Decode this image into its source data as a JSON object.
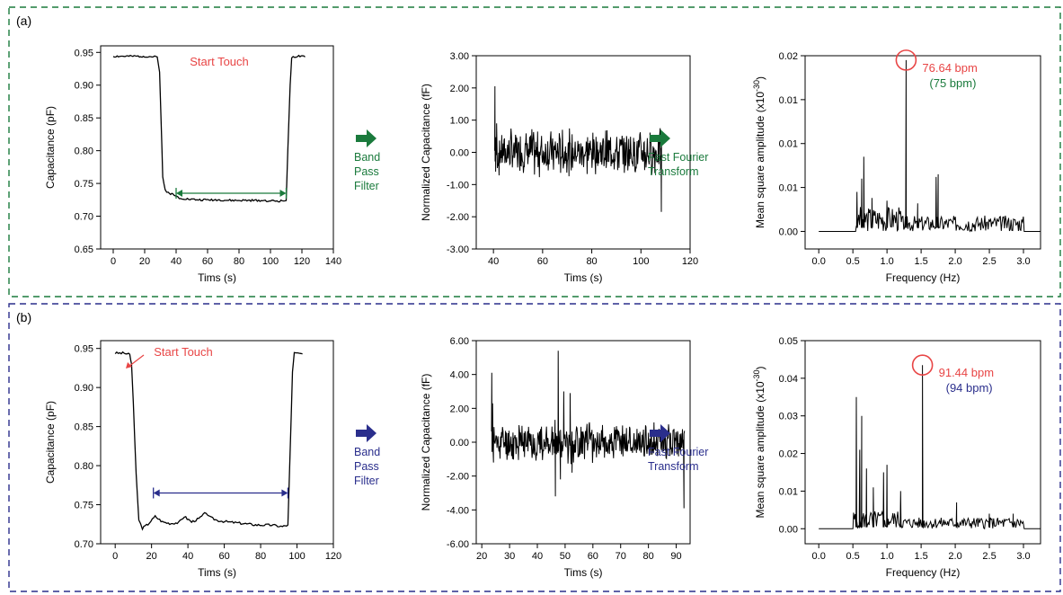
{
  "panels": [
    {
      "label": "(a)",
      "color": "#1a7a3c",
      "arrow_label_1": [
        "Band",
        "Pass",
        "Filter"
      ],
      "arrow_label_2": [
        "Fast Fourier",
        "Transform"
      ],
      "chart_data": [
        {
          "type": "line",
          "xlabel": "Tims (s)",
          "ylabel": "Capacitance (pF)",
          "xlim": [
            -8,
            140
          ],
          "ylim": [
            0.65,
            0.96
          ],
          "xticks": [
            0,
            20,
            40,
            60,
            80,
            100,
            120,
            140
          ],
          "yticks": [
            0.65,
            0.7,
            0.75,
            0.8,
            0.85,
            0.9,
            0.95
          ],
          "ytick_labels": [
            "0.65",
            "0.70",
            "0.75",
            "0.80",
            "0.85",
            "0.90",
            "0.95"
          ],
          "annotation": "Start Touch",
          "bracket": [
            40,
            110,
            0.735
          ],
          "series": [
            {
              "x": [
                0,
                10,
                20,
                28,
                29.5,
                30.5,
                31.5,
                33,
                35,
                38,
                42,
                48,
                55,
                65,
                75,
                85,
                95,
                105,
                110,
                111,
                112.5,
                113.5,
                118,
                122
              ],
              "y": [
                0.944,
                0.944,
                0.944,
                0.943,
                0.92,
                0.84,
                0.76,
                0.74,
                0.736,
                0.733,
                0.728,
                0.726,
                0.725,
                0.725,
                0.724,
                0.724,
                0.724,
                0.723,
                0.724,
                0.8,
                0.9,
                0.943,
                0.944,
                0.943
              ]
            }
          ]
        },
        {
          "type": "line",
          "xlabel": "Tims (s)",
          "ylabel": "Normalized Capacitance (fF)",
          "xlim": [
            33,
            120
          ],
          "ylim": [
            -3.0,
            3.0
          ],
          "xticks": [
            40,
            60,
            80,
            100,
            120
          ],
          "yticks": [
            -3,
            -2,
            -1,
            0,
            1,
            2,
            3
          ],
          "ytick_labels": [
            "-3.00",
            "-2.00",
            "-1.00",
            "0.00",
            "1.00",
            "2.00",
            "3.00"
          ],
          "noise": {
            "x0": 40.5,
            "x1": 108.5,
            "amp": 0.55,
            "seed": 7,
            "spikes": [
              [
                40.6,
                2.05
              ],
              [
                40.9,
                -0.6
              ],
              [
                41.3,
                0.9
              ],
              [
                108.3,
                -1.85
              ]
            ]
          }
        },
        {
          "type": "line",
          "xlabel": "Frequency (Hz)",
          "ylabel": "Mean square amplitude (x10-30)",
          "xlim": [
            -0.2,
            3.25
          ],
          "ylim": [
            -0.002,
            0.02
          ],
          "xticks": [
            0.0,
            0.5,
            1.0,
            1.5,
            2.0,
            2.5,
            3.0
          ],
          "xtick_labels": [
            "0.0",
            "0.5",
            "1.0",
            "1.5",
            "2.0",
            "2.5",
            "3.0"
          ],
          "yticks": [
            0.0,
            0.005,
            0.01,
            0.015,
            0.02
          ],
          "ytick_labels": [
            "0.00",
            "0.01",
            "0.01",
            "0.01",
            "0.02"
          ],
          "peak_label": "76.64 bpm",
          "reference_label": "(75 bpm)",
          "peak": [
            1.28,
            0.0195
          ],
          "spectrum": {
            "baseline_until": 0.54,
            "end": 3.0,
            "tail": 3.25,
            "floor_amp": 0.0018,
            "seed": 3,
            "peaks": [
              [
                0.56,
                0.0045
              ],
              [
                0.63,
                0.006
              ],
              [
                0.66,
                0.0085
              ],
              [
                0.78,
                0.0038
              ],
              [
                1.0,
                0.0035
              ],
              [
                1.28,
                0.0195
              ],
              [
                1.45,
                0.0032
              ],
              [
                1.72,
                0.0062
              ],
              [
                1.75,
                0.0065
              ]
            ]
          }
        }
      ]
    },
    {
      "label": "(b)",
      "color": "#2a2e8c",
      "arrow_label_1": [
        "Band",
        "Pass",
        "Filter"
      ],
      "arrow_label_2": [
        "Fast Fourier",
        "Transform"
      ],
      "chart_data": [
        {
          "type": "line",
          "xlabel": "Tims (s)",
          "ylabel": "Capacitance (pF)",
          "xlim": [
            -8,
            120
          ],
          "ylim": [
            0.7,
            0.96
          ],
          "xticks": [
            0,
            20,
            40,
            60,
            80,
            100,
            120
          ],
          "yticks": [
            0.7,
            0.75,
            0.8,
            0.85,
            0.9,
            0.95
          ],
          "ytick_labels": [
            "0.70",
            "0.75",
            "0.80",
            "0.85",
            "0.90",
            "0.95"
          ],
          "annotation": "Start Touch",
          "bracket": [
            21,
            95,
            0.765
          ],
          "series": [
            {
              "x": [
                0,
                5,
                8,
                9,
                10,
                11.5,
                13,
                15,
                18,
                22,
                26,
                30,
                35,
                38,
                42,
                46,
                50,
                52,
                56,
                62,
                70,
                78,
                86,
                92,
                95,
                96,
                97.5,
                98.5,
                103
              ],
              "y": [
                0.944,
                0.944,
                0.942,
                0.93,
                0.88,
                0.79,
                0.73,
                0.72,
                0.725,
                0.735,
                0.728,
                0.726,
                0.727,
                0.735,
                0.728,
                0.732,
                0.74,
                0.734,
                0.73,
                0.728,
                0.726,
                0.724,
                0.724,
                0.722,
                0.724,
                0.8,
                0.92,
                0.944,
                0.943
              ]
            }
          ]
        },
        {
          "type": "line",
          "xlabel": "Tims (s)",
          "ylabel": "Normalized Capacitance (fF)",
          "xlim": [
            18,
            95
          ],
          "ylim": [
            -6.0,
            6.0
          ],
          "xticks": [
            20,
            30,
            40,
            50,
            60,
            70,
            80,
            90
          ],
          "yticks": [
            -6,
            -4,
            -2,
            0,
            2,
            4,
            6
          ],
          "ytick_labels": [
            "-6.00",
            "-4.00",
            "-2.00",
            "0.00",
            "2.00",
            "4.00",
            "6.00"
          ],
          "noise": {
            "x0": 23.5,
            "x1": 93.0,
            "amp": 0.9,
            "seed": 11,
            "spikes": [
              [
                23.6,
                4.1
              ],
              [
                23.9,
                2.3
              ],
              [
                24.2,
                -1.2
              ],
              [
                46.5,
                -3.2
              ],
              [
                47.5,
                5.4
              ],
              [
                48.3,
                -2.2
              ],
              [
                49.5,
                3.0
              ],
              [
                51.8,
                2.9
              ],
              [
                52.5,
                -1.8
              ],
              [
                92.8,
                -3.9
              ]
            ]
          }
        },
        {
          "type": "line",
          "xlabel": "Frequency (Hz)",
          "ylabel": "Mean square amplitude (x10-30)",
          "xlim": [
            -0.2,
            3.25
          ],
          "ylim": [
            -0.004,
            0.05
          ],
          "xticks": [
            0.0,
            0.5,
            1.0,
            1.5,
            2.0,
            2.5,
            3.0
          ],
          "xtick_labels": [
            "0.0",
            "0.5",
            "1.0",
            "1.5",
            "2.0",
            "2.5",
            "3.0"
          ],
          "yticks": [
            0.0,
            0.01,
            0.02,
            0.03,
            0.04,
            0.05
          ],
          "ytick_labels": [
            "0.00",
            "0.01",
            "0.02",
            "0.03",
            "0.04",
            "0.05"
          ],
          "peak_label": "91.44 bpm",
          "reference_label": "(94 bpm)",
          "peak": [
            1.52,
            0.0435
          ],
          "spectrum": {
            "baseline_until": 0.5,
            "end": 3.0,
            "tail": 3.25,
            "floor_amp": 0.003,
            "seed": 5,
            "peaks": [
              [
                0.55,
                0.035
              ],
              [
                0.6,
                0.021
              ],
              [
                0.63,
                0.03
              ],
              [
                0.7,
                0.016
              ],
              [
                0.8,
                0.011
              ],
              [
                0.95,
                0.015
              ],
              [
                1.0,
                0.017
              ],
              [
                1.2,
                0.01
              ],
              [
                1.52,
                0.0435
              ],
              [
                2.02,
                0.007
              ],
              [
                2.5,
                0.004
              ],
              [
                2.85,
                0.004
              ]
            ]
          }
        }
      ]
    }
  ]
}
